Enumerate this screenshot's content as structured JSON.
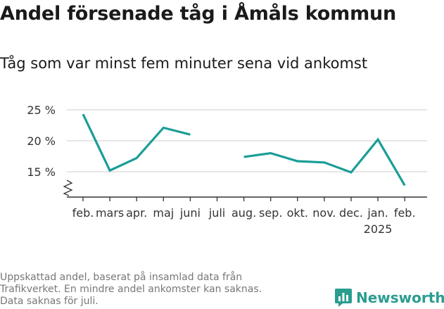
{
  "header": {
    "title": "Andel försenade tåg i Åmåls kommun",
    "subtitle": "Tåg som var minst fem minuter sena vid ankomst"
  },
  "footnote": {
    "lines": [
      "Uppskattad andel, baserat på insamlad data från",
      "Trafikverket. En mindre andel ankomster kan saknas.",
      "Data saknas för juli."
    ]
  },
  "logo": {
    "text": "Newsworthy",
    "icon": "bar-chart-icon"
  },
  "chart_data": {
    "type": "line",
    "categories": [
      "feb.",
      "mars",
      "apr.",
      "maj",
      "juni",
      "juli",
      "aug.",
      "sep.",
      "okt.",
      "nov.",
      "dec.",
      "jan.",
      "feb."
    ],
    "year_label": "2025",
    "series": [
      {
        "values": [
          24.3,
          15.2,
          17.2,
          22.1,
          21.0,
          null,
          17.4,
          18.0,
          16.7,
          16.5,
          14.9,
          20.2,
          12.8
        ]
      }
    ],
    "yticks": [
      15,
      20,
      25
    ],
    "ytick_labels": [
      "15 %",
      "20 %",
      "25 %"
    ],
    "ylim": [
      11.5,
      25.5
    ],
    "axis_break": true,
    "grid": true,
    "line_color": "#1a9e96",
    "grid_color": "#dddddd",
    "axis_color": "#333333"
  }
}
